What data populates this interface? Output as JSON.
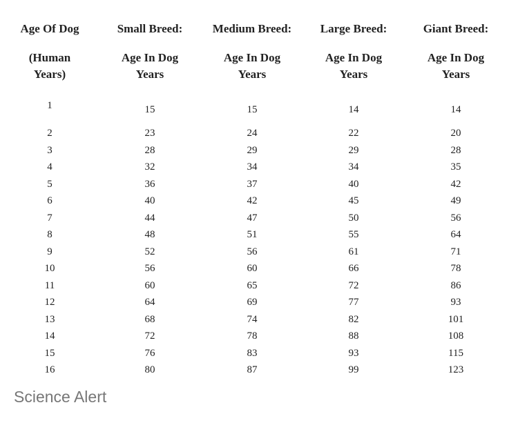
{
  "table": {
    "header": [
      [
        "Age Of Dog",
        "Small Breed:",
        "Medium Breed:",
        "Large Breed:",
        "Giant Breed:"
      ],
      [
        "(Human Years)",
        "Age In Dog Years",
        "Age In Dog Years",
        "Age In Dog Years",
        "Age In Dog Years"
      ]
    ],
    "rows": [
      [
        1,
        15,
        15,
        14,
        14
      ],
      [
        2,
        23,
        24,
        22,
        20
      ],
      [
        3,
        28,
        29,
        29,
        28
      ],
      [
        4,
        32,
        34,
        34,
        35
      ],
      [
        5,
        36,
        37,
        40,
        42
      ],
      [
        6,
        40,
        42,
        45,
        49
      ],
      [
        7,
        44,
        47,
        50,
        56
      ],
      [
        8,
        48,
        51,
        55,
        64
      ],
      [
        9,
        52,
        56,
        61,
        71
      ],
      [
        10,
        56,
        60,
        66,
        78
      ],
      [
        11,
        60,
        65,
        72,
        86
      ],
      [
        12,
        64,
        69,
        77,
        93
      ],
      [
        13,
        68,
        74,
        82,
        101
      ],
      [
        14,
        72,
        78,
        88,
        108
      ],
      [
        15,
        76,
        83,
        93,
        115
      ],
      [
        16,
        80,
        87,
        99,
        123
      ]
    ]
  },
  "source": "Science Alert"
}
